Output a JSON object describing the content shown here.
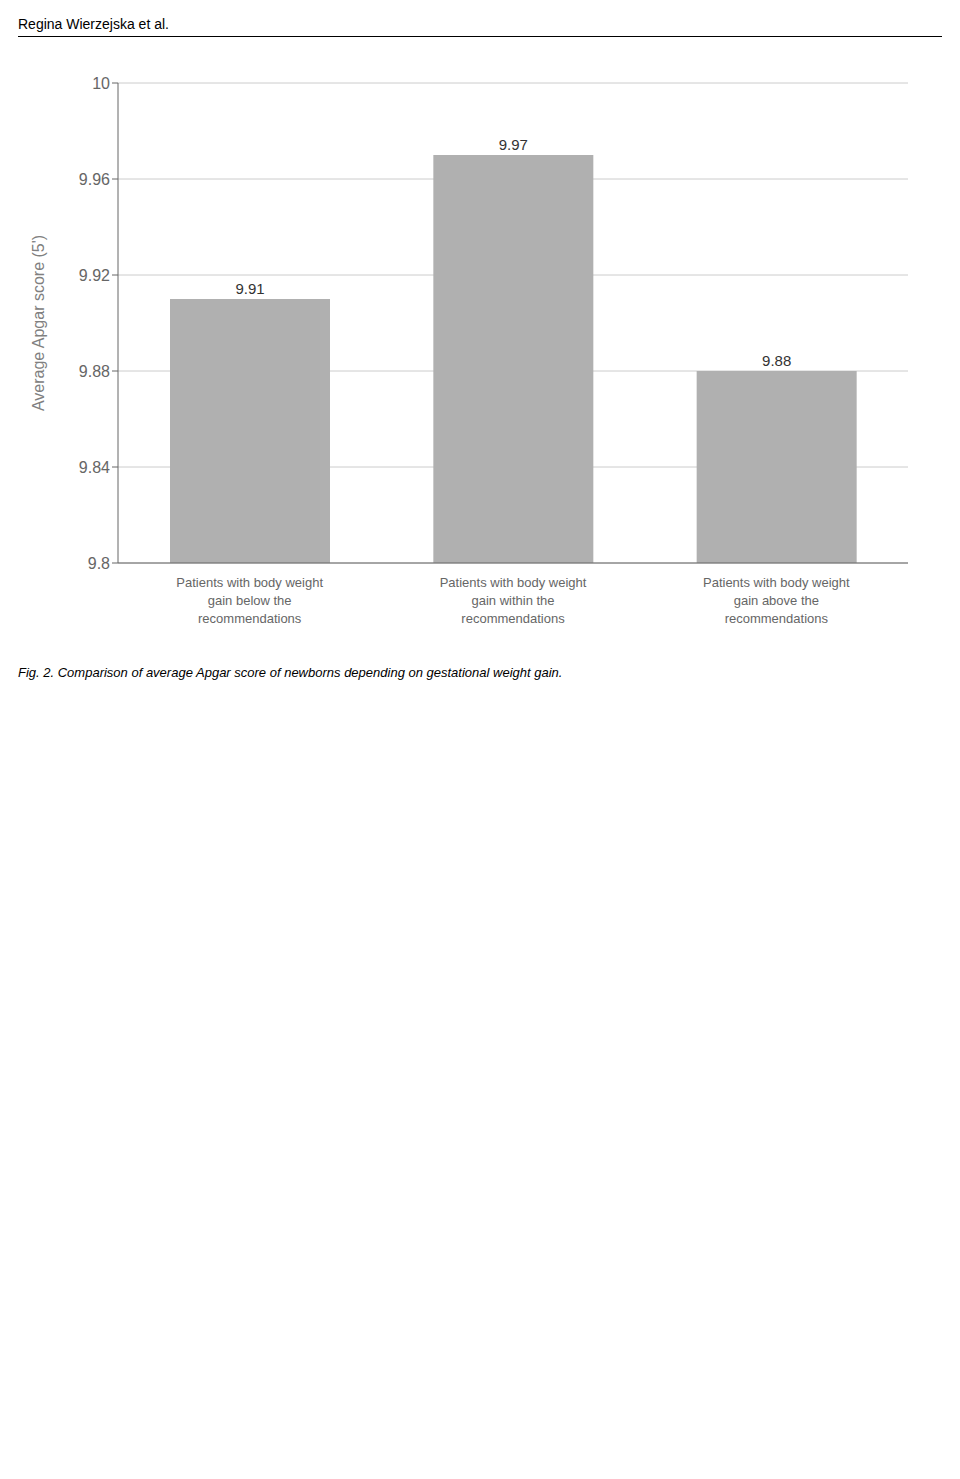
{
  "chart_data": {
    "type": "bar",
    "title": "Fig. 2. Comparison of average Apgar score of newborns depending on gestational weight gain.",
    "annotations": [
      "Regina Wierzejska et al."
    ],
    "categories": [
      "Patients with body weight\ngain below the\nrecommendations",
      "Patients with body weight\ngain within the\nrecommendations",
      "Patients with body weight\ngain above the\nrecommendations"
    ],
    "values": [
      9.91,
      9.97,
      9.88
    ],
    "color": "#b0b0b0",
    "ylabel": "Average Apgar score (5')",
    "ylim": [
      9.8,
      10.0
    ],
    "yticks": [
      9.8,
      9.84,
      9.88,
      9.92,
      9.96,
      10
    ],
    "grid": true,
    "data_labels": true
  }
}
